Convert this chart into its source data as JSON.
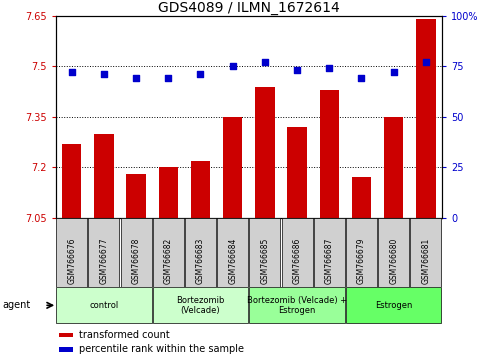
{
  "title": "GDS4089 / ILMN_1672614",
  "samples": [
    "GSM766676",
    "GSM766677",
    "GSM766678",
    "GSM766682",
    "GSM766683",
    "GSM766684",
    "GSM766685",
    "GSM766686",
    "GSM766687",
    "GSM766679",
    "GSM766680",
    "GSM766681"
  ],
  "transformed_count": [
    7.27,
    7.3,
    7.18,
    7.2,
    7.22,
    7.35,
    7.44,
    7.32,
    7.43,
    7.17,
    7.35,
    7.64
  ],
  "percentile_rank": [
    72,
    71,
    69,
    69,
    71,
    75,
    77,
    73,
    74,
    69,
    72,
    77
  ],
  "bar_color": "#cc0000",
  "dot_color": "#0000cc",
  "ylim_left": [
    7.05,
    7.65
  ],
  "ylim_right": [
    0,
    100
  ],
  "yticks_left": [
    7.05,
    7.2,
    7.35,
    7.5,
    7.65
  ],
  "yticks_right": [
    0,
    25,
    50,
    75,
    100
  ],
  "ytick_labels_right": [
    "0",
    "25",
    "50",
    "75",
    "100%"
  ],
  "hlines": [
    7.2,
    7.35,
    7.5
  ],
  "group_defs": [
    {
      "indices": [
        0,
        1,
        2
      ],
      "label": "control",
      "color": "#ccffcc"
    },
    {
      "indices": [
        3,
        4,
        5
      ],
      "label": "Bortezomib\n(Velcade)",
      "color": "#ccffcc"
    },
    {
      "indices": [
        6,
        7,
        8
      ],
      "label": "Bortezomib (Velcade) +\nEstrogen",
      "color": "#99ff99"
    },
    {
      "indices": [
        9,
        10,
        11
      ],
      "label": "Estrogen",
      "color": "#66ff66"
    }
  ],
  "agent_label": "agent",
  "legend_bar_label": "transformed count",
  "legend_dot_label": "percentile rank within the sample",
  "bar_color_text": "#cc0000",
  "dot_color_text": "#0000cc",
  "title_fontsize": 10,
  "tick_fontsize": 7,
  "bar_width": 0.6,
  "dot_size": 18,
  "sample_box_color": "#d0d0d0",
  "xlim": [
    -0.5,
    11.5
  ]
}
